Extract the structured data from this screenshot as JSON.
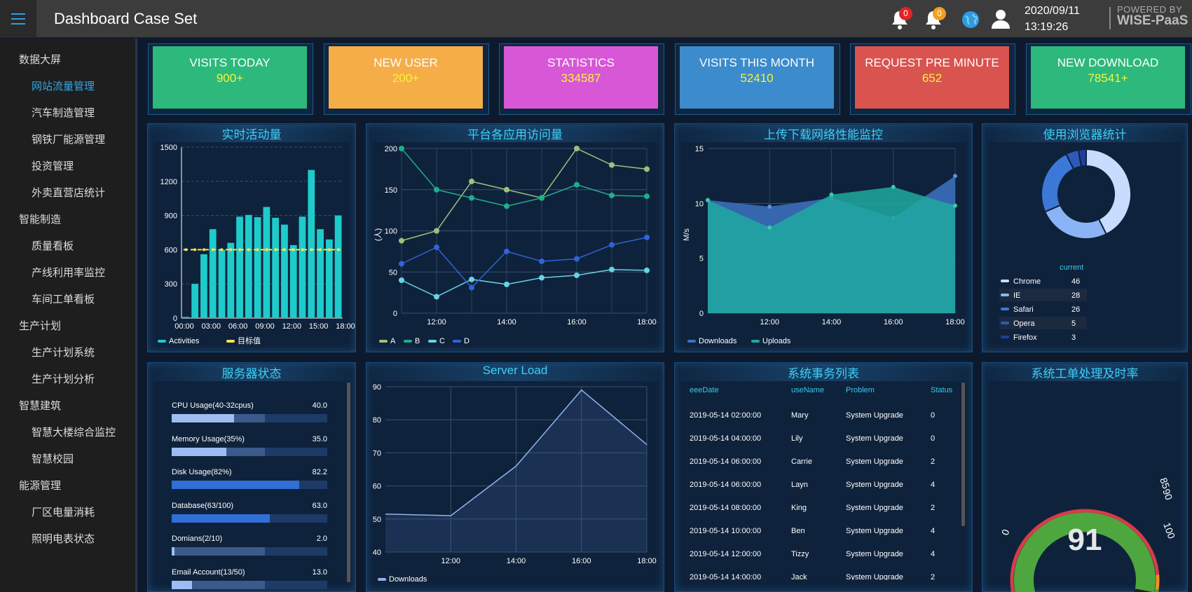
{
  "header": {
    "title": "Dashboard Case Set",
    "notif_count_1": "0",
    "notif_count_2": "0",
    "date": "2020/09/11",
    "time": "13:19:26",
    "powered_by": "POWERED BY",
    "brand": "WISE-PaaS"
  },
  "sidebar": {
    "items": [
      {
        "label": "数据大屏",
        "level": "group"
      },
      {
        "label": "网站流量管理",
        "level": "item",
        "active": true
      },
      {
        "label": "汽车制造管理",
        "level": "item"
      },
      {
        "label": "钢铁厂能源管理",
        "level": "item"
      },
      {
        "label": "投资管理",
        "level": "item"
      },
      {
        "label": "外卖直营店统计",
        "level": "item"
      },
      {
        "label": "智能制造",
        "level": "group"
      },
      {
        "label": "质量看板",
        "level": "item"
      },
      {
        "label": "产线利用率监控",
        "level": "item"
      },
      {
        "label": "车间工单看板",
        "level": "item"
      },
      {
        "label": "生产计划",
        "level": "group"
      },
      {
        "label": "生产计划系统",
        "level": "item"
      },
      {
        "label": "生产计划分析",
        "level": "item"
      },
      {
        "label": "智慧建筑",
        "level": "group"
      },
      {
        "label": "智慧大楼综合监控",
        "level": "item"
      },
      {
        "label": "智慧校园",
        "level": "item"
      },
      {
        "label": "能源管理",
        "level": "group"
      },
      {
        "label": "厂区电量消耗",
        "level": "item"
      },
      {
        "label": "照明电表状态",
        "level": "item"
      }
    ]
  },
  "tiles": [
    {
      "label": "VISITS TODAY",
      "value": "900+",
      "color": "#2db87c"
    },
    {
      "label": "NEW USER",
      "value": "200+",
      "color": "#f5ad48"
    },
    {
      "label": "STATISTICS",
      "value": "334587",
      "color": "#d857d6"
    },
    {
      "label": "VISITS THIS MONTH",
      "value": "52410",
      "color": "#3c8bcc"
    },
    {
      "label": "REQUEST PRE MINUTE",
      "value": "652",
      "color": "#d9534f"
    },
    {
      "label": "NEW DOWNLOAD",
      "value": "78541+",
      "color": "#2db87c"
    }
  ],
  "panels": {
    "activity": "实时活动量",
    "app_visits": "平台各应用访问量",
    "network": "上传下载网络性能监控",
    "browser": "使用浏览器统计",
    "server_status": "服务器状态",
    "server_load": "Server Load",
    "transactions": "系统事务列表",
    "ticket_rate": "系统工单处理及时率"
  },
  "server_status": [
    {
      "label": "CPU Usage(40-32cpus)",
      "value": "40.0",
      "pct": 40,
      "sub": 60
    },
    {
      "label": "Memory Usage(35%)",
      "value": "35.0",
      "pct": 35,
      "sub": 60
    },
    {
      "label": "Disk Usage(82%)",
      "value": "82.2",
      "pct": 82.2,
      "sub": 0
    },
    {
      "label": "Database(63/100)",
      "value": "63.0",
      "pct": 63,
      "sub": 0
    },
    {
      "label": "Domians(2/10)",
      "value": "2.0",
      "pct": 2,
      "sub": 60
    },
    {
      "label": "Email Account(13/50)",
      "value": "13.0",
      "pct": 13,
      "sub": 60
    }
  ],
  "transactions": {
    "columns": [
      "eeeDate",
      "useName",
      "Problem",
      "Status"
    ],
    "rows": [
      [
        "2019-05-14 02:00:00",
        "Mary",
        "System Upgrade",
        "0"
      ],
      [
        "2019-05-14 04:00:00",
        "Lily",
        "System Upgrade",
        "0"
      ],
      [
        "2019-05-14 06:00:00",
        "Carrie",
        "System Upgrade",
        "2"
      ],
      [
        "2019-05-14 06:00:00",
        "Layn",
        "System Upgrade",
        "4"
      ],
      [
        "2019-05-14 08:00:00",
        "King",
        "System Upgrade",
        "2"
      ],
      [
        "2019-05-14 10:00:00",
        "Ben",
        "System Upgrade",
        "4"
      ],
      [
        "2019-05-14 12:00:00",
        "Tizzy",
        "System Upgrade",
        "4"
      ],
      [
        "2019-05-14 14:00:00",
        "Jack",
        "System Upgrade",
        "2"
      ]
    ]
  },
  "chart_data": [
    {
      "type": "bar",
      "title": "实时活动量",
      "x_ticks": [
        "00:00",
        "03:00",
        "06:00",
        "09:00",
        "12:00",
        "15:00",
        "18:00"
      ],
      "series": [
        {
          "name": "Activities",
          "color": "#1ecbcb",
          "values": [
            10,
            300,
            560,
            780,
            600,
            660,
            890,
            905,
            885,
            975,
            880,
            820,
            640,
            890,
            1300,
            780,
            690,
            900
          ]
        },
        {
          "name": "目标值",
          "color": "#ffe44d",
          "values": [
            600
          ]
        }
      ],
      "ylim": [
        0,
        1500
      ],
      "y_ticks": [
        0,
        300,
        600,
        900,
        1200,
        1500
      ]
    },
    {
      "type": "line",
      "title": "平台各应用访问量",
      "ylabel": "(人)",
      "x_ticks": [
        "12:00",
        "14:00",
        "16:00",
        "18:00"
      ],
      "series": [
        {
          "name": "A",
          "color": "#9cc27a",
          "values": [
            88,
            100,
            160,
            150,
            140,
            200,
            180,
            175
          ]
        },
        {
          "name": "B",
          "color": "#1fae8c",
          "values": [
            200,
            150,
            140,
            130,
            140,
            156,
            143,
            142
          ]
        },
        {
          "name": "C",
          "color": "#67d3e5",
          "values": [
            40,
            20,
            41,
            35,
            43,
            46,
            53,
            52
          ]
        },
        {
          "name": "D",
          "color": "#2f63d8",
          "values": [
            60,
            80,
            31,
            75,
            63,
            66,
            83,
            92
          ]
        }
      ],
      "ylim": [
        0,
        200
      ],
      "y_ticks": [
        0,
        50,
        100,
        150,
        200
      ]
    },
    {
      "type": "area",
      "title": "上传下载网络性能监控",
      "ylabel": "M/s",
      "x": [
        "11:00",
        "12:00",
        "14:00",
        "16:00",
        "18:00"
      ],
      "x_ticks": [
        "12:00",
        "14:00",
        "16:00",
        "18:00"
      ],
      "series": [
        {
          "name": "Downloads",
          "color": "#3d72c2",
          "values": [
            10.3,
            9.7,
            10.5,
            8.7,
            12.5
          ]
        },
        {
          "name": "Uploads",
          "color": "#1ea9a0",
          "values": [
            10.3,
            7.8,
            10.8,
            11.5,
            9.8
          ]
        }
      ],
      "ylim": [
        0,
        15
      ],
      "y_ticks": [
        0,
        5,
        10,
        15
      ]
    },
    {
      "type": "pie",
      "title": "使用浏览器统计",
      "legend_header": "current",
      "slices": [
        {
          "label": "Chrome",
          "value": 46,
          "color": "#c8dcff"
        },
        {
          "label": "IE",
          "value": 28,
          "color": "#8ab4f5"
        },
        {
          "label": "Safari",
          "value": 26,
          "color": "#3c78d8"
        },
        {
          "label": "Opera",
          "value": 5,
          "color": "#2c5ab8"
        },
        {
          "label": "Firefox",
          "value": 3,
          "color": "#1f3fa0"
        }
      ]
    },
    {
      "type": "area",
      "title": "Server Load",
      "x": [
        "11:00",
        "12:00",
        "14:00",
        "16:00",
        "18:00"
      ],
      "x_ticks": [
        "12:00",
        "14:00",
        "16:00",
        "18:00"
      ],
      "series": [
        {
          "name": "Downloads",
          "color": "#8fb3ef",
          "values": [
            51.5,
            51,
            66,
            89,
            72.5
          ]
        }
      ],
      "ylim": [
        40,
        90
      ],
      "y_ticks": [
        40,
        50,
        60,
        70,
        80,
        90
      ]
    },
    {
      "type": "gauge",
      "title": "系统工单处理及时率",
      "value": 91,
      "min": 0,
      "max": 100,
      "bands": [
        85,
        90
      ],
      "tick_labels": [
        "0",
        "85",
        "90",
        "100"
      ]
    }
  ]
}
